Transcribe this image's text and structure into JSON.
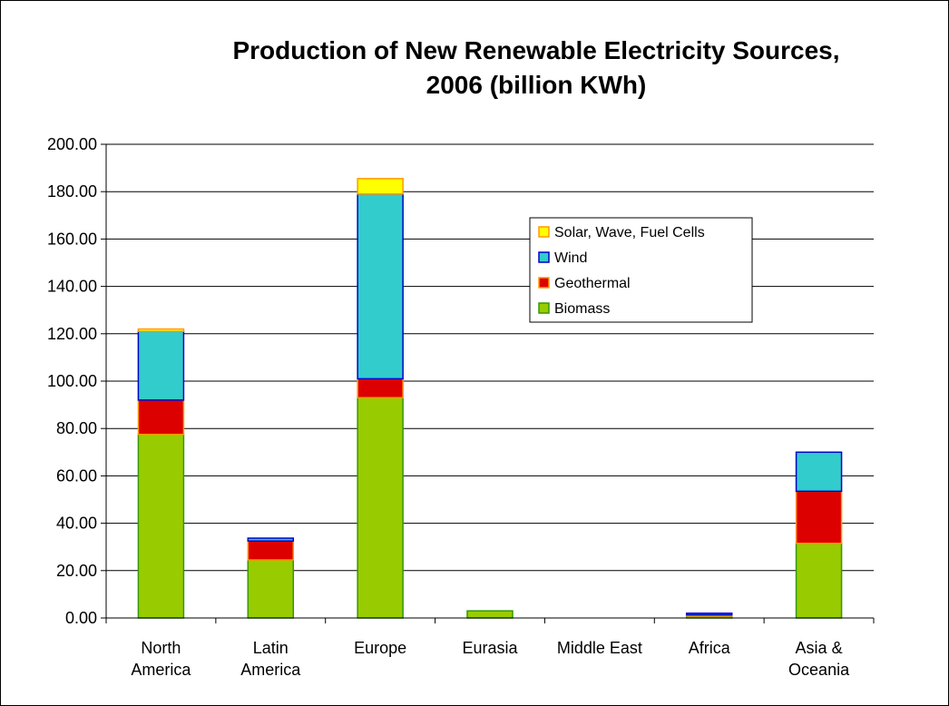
{
  "chart_data": {
    "type": "bar",
    "stacked": true,
    "title_lines": [
      "Production of New Renewable Electricity Sources,",
      "2006 (billion KWh)"
    ],
    "xlabel": "",
    "ylabel": "",
    "categories": [
      [
        "North",
        "America"
      ],
      [
        "Latin",
        "America"
      ],
      [
        "Europe"
      ],
      [
        "Eurasia"
      ],
      [
        "Middle East"
      ],
      [
        "Africa"
      ],
      [
        "Asia &",
        "Oceania"
      ]
    ],
    "ylim": [
      0,
      200
    ],
    "yticks": [
      "0.00",
      "20.00",
      "40.00",
      "60.00",
      "80.00",
      "100.00",
      "120.00",
      "140.00",
      "160.00",
      "180.00",
      "200.00"
    ],
    "grid": true,
    "legend_position": "upper-right",
    "series": [
      {
        "name": "Biomass",
        "color": "#99CC00",
        "edge": "#339900",
        "values": [
          77.5,
          24.5,
          93.0,
          3.0,
          0.0,
          0.8,
          31.5
        ]
      },
      {
        "name": "Geothermal",
        "color": "#DD0000",
        "edge": "#FF9900",
        "values": [
          14.5,
          8.0,
          8.0,
          0.0,
          0.0,
          0.5,
          22.0
        ]
      },
      {
        "name": "Wind",
        "color": "#33CCCC",
        "edge": "#0000CC",
        "values": [
          29.0,
          1.2,
          78.0,
          0.0,
          0.0,
          0.7,
          16.5
        ]
      },
      {
        "name": "Solar, Wave, Fuel Cells",
        "color": "#FFFF00",
        "edge": "#FF9900",
        "values": [
          1.0,
          0.0,
          6.5,
          0.0,
          0.0,
          0.0,
          0.0
        ]
      }
    ],
    "legend_order": [
      "Solar, Wave, Fuel Cells",
      "Wind",
      "Geothermal",
      "Biomass"
    ]
  }
}
